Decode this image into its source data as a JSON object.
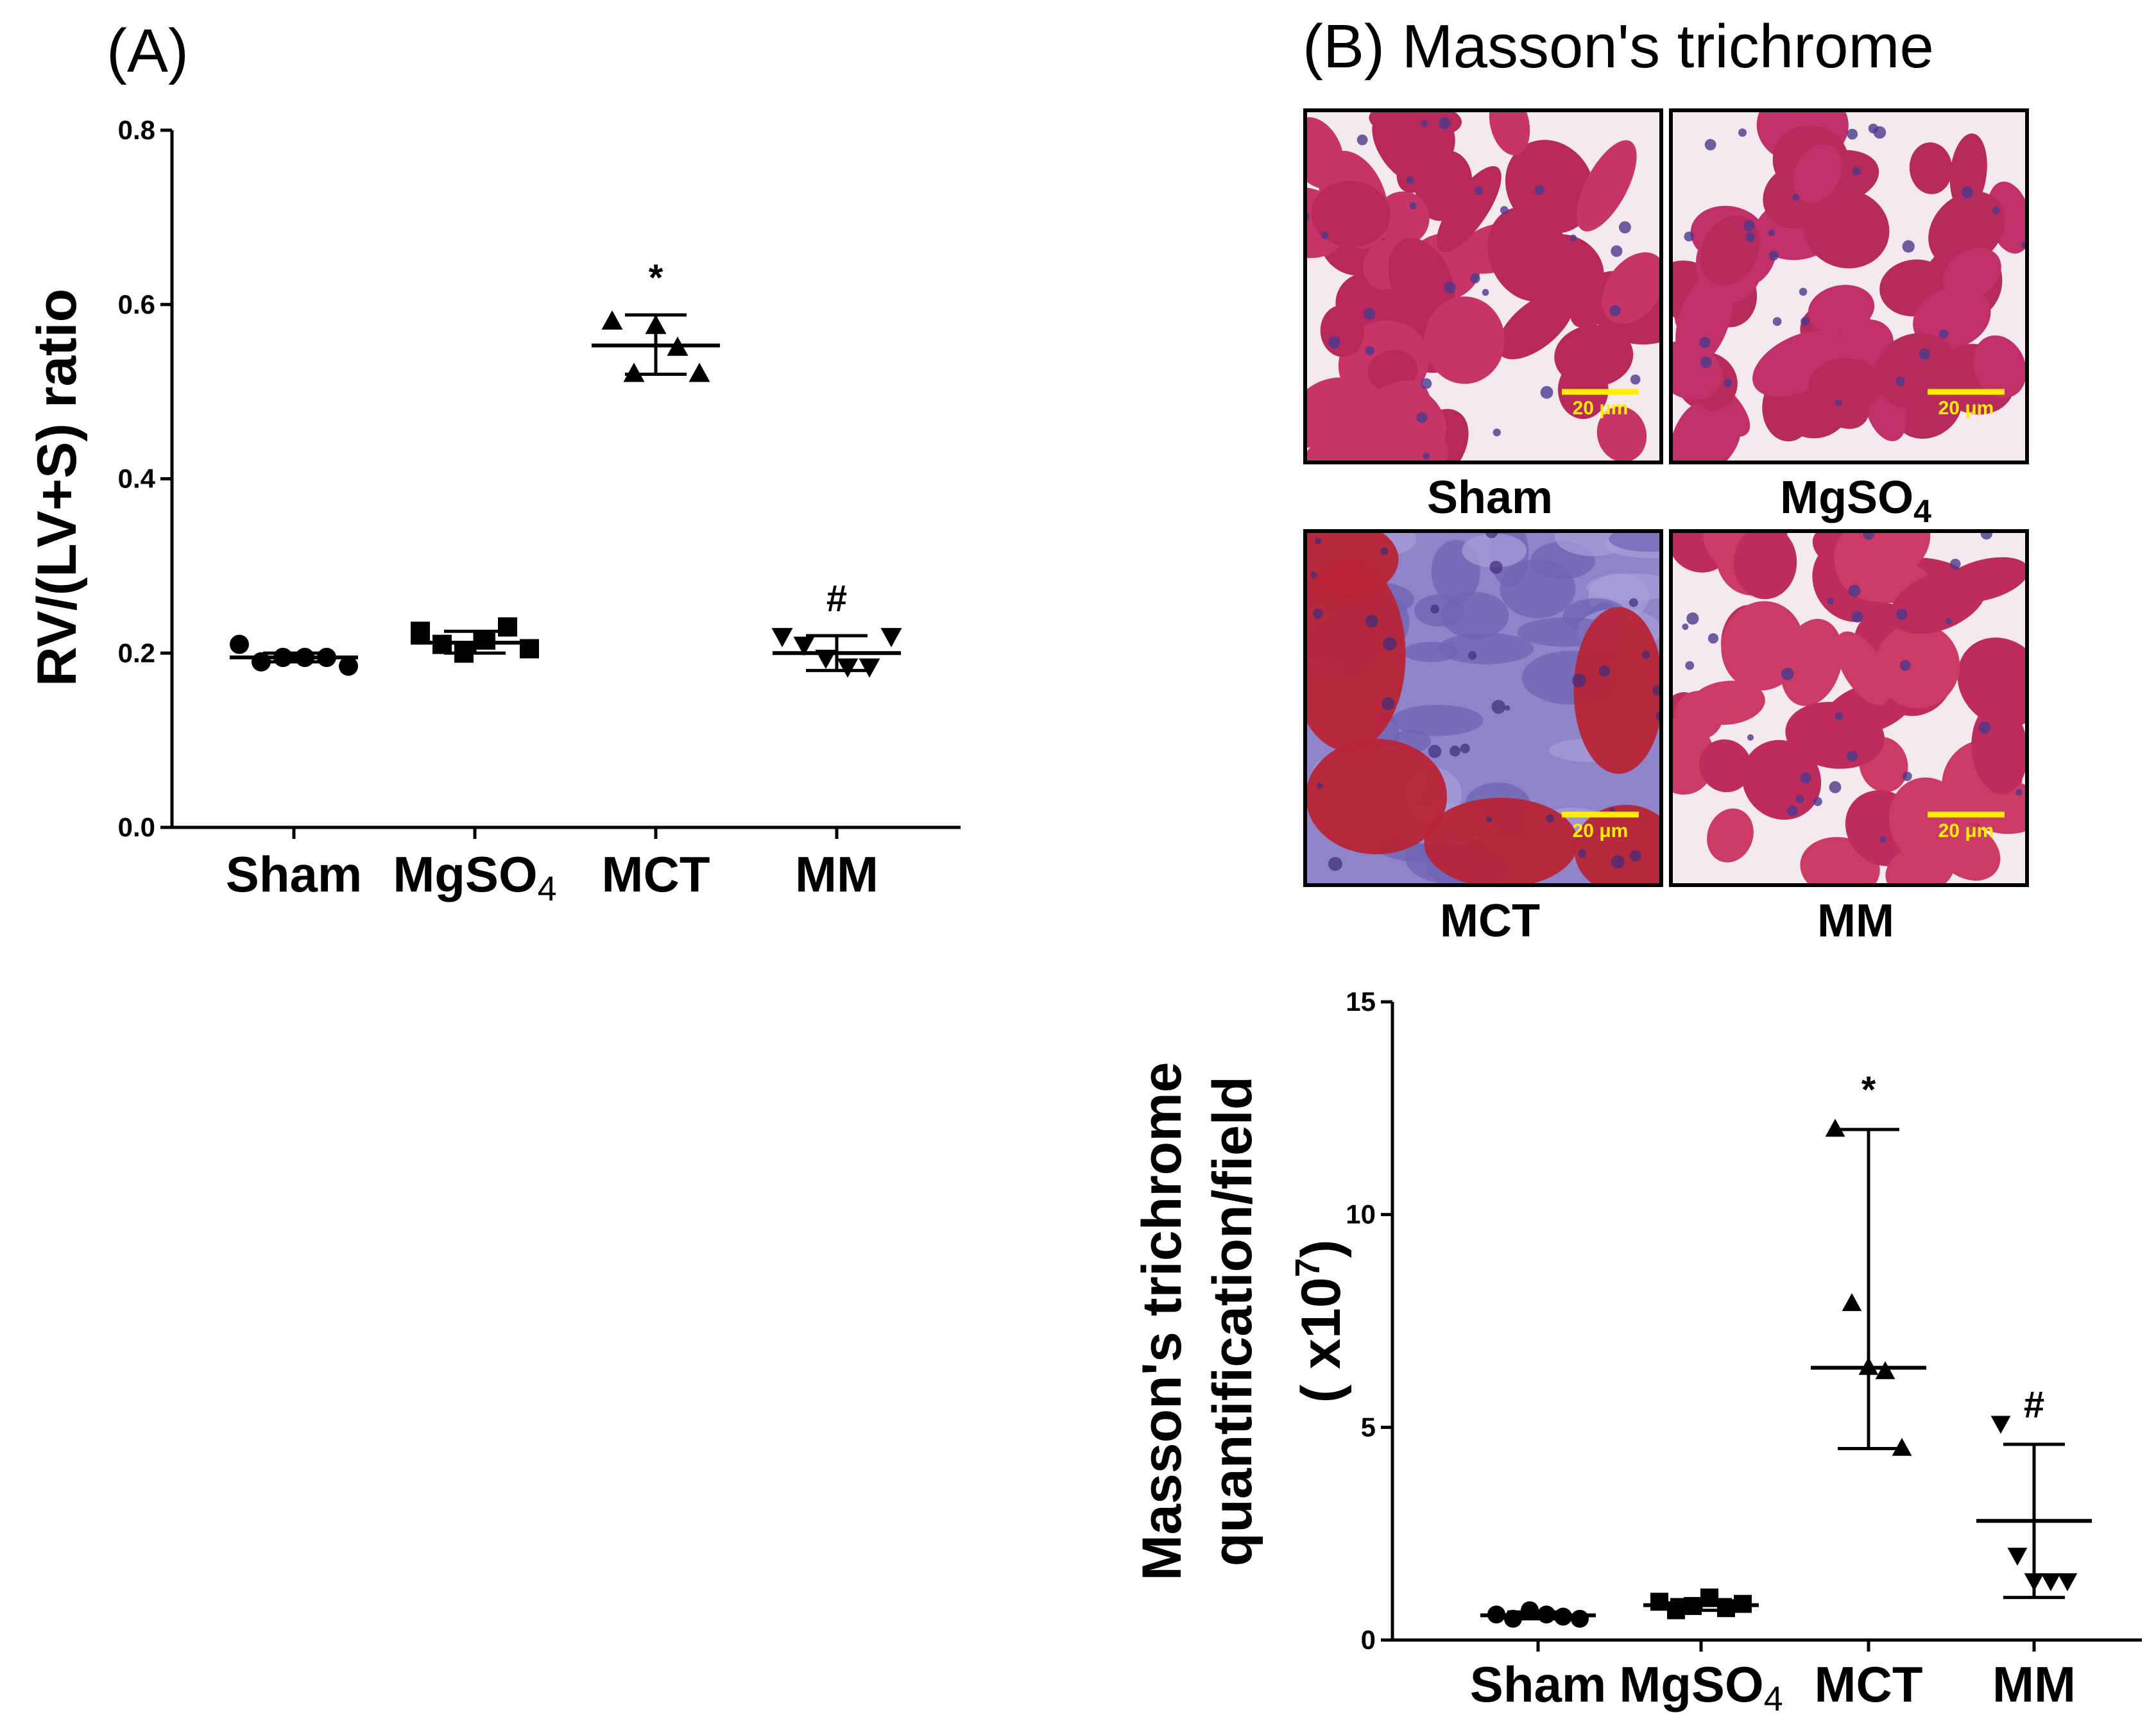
{
  "figure": {
    "panel_a_label": "(A)",
    "panel_b_label": "(B) Masson's trichrome"
  },
  "micrographs": {
    "stain": "Masson's trichrome",
    "scale_bar": "20 μm",
    "panels": [
      {
        "label": "Sham",
        "tissue": "normal",
        "muscle_color": "#b8285a",
        "fiber_color": "#c73468"
      },
      {
        "label": "MgSO",
        "subscript": "4",
        "tissue": "normal",
        "muscle_color": "#b62a5c",
        "fiber_color": "#c2306a"
      },
      {
        "label": "MCT",
        "tissue": "fibrotic",
        "muscle_color": "#b82436",
        "fiber_color": "#7a70c4"
      },
      {
        "label": "MM",
        "tissue": "normal",
        "muscle_color": "#bd2c5c",
        "fiber_color": "#cc3a66"
      }
    ]
  },
  "chart_data": [
    {
      "id": "chart-a",
      "type": "scatter",
      "ylabel": "RV/(LV+S) ratio",
      "ylim": [
        0,
        0.8
      ],
      "yticks": [
        0.0,
        0.2,
        0.4,
        0.6,
        0.8
      ],
      "ytick_labels": [
        "0.0",
        "0.2",
        "0.4",
        "0.6",
        "0.8"
      ],
      "categories": [
        {
          "label": "Sham",
          "sub": ""
        },
        {
          "label": "MgSO",
          "sub": "4"
        },
        {
          "label": "MCT",
          "sub": ""
        },
        {
          "label": "MM",
          "sub": ""
        }
      ],
      "series": [
        {
          "category": "Sham",
          "marker": "circle",
          "points": [
            0.21,
            0.19,
            0.195,
            0.195,
            0.195,
            0.185
          ],
          "mean": 0.195,
          "err_low": 0.19,
          "err_high": 0.2,
          "sig": ""
        },
        {
          "category": "MgSO4",
          "marker": "square",
          "points": [
            0.225,
            0.21,
            0.2,
            0.215,
            0.23,
            0.205
          ],
          "mean": 0.212,
          "err_low": 0.2,
          "err_high": 0.225,
          "sig": ""
        },
        {
          "category": "MCT",
          "marker": "triangle-up",
          "points": [
            0.58,
            0.52,
            0.575,
            0.55,
            0.52
          ],
          "mean": 0.553,
          "err_low": 0.52,
          "err_high": 0.588,
          "sig": "*"
        },
        {
          "category": "MM",
          "marker": "triangle-down",
          "points": [
            0.22,
            0.21,
            0.195,
            0.185,
            0.185,
            0.22
          ],
          "mean": 0.2,
          "err_low": 0.18,
          "err_high": 0.22,
          "sig": "#"
        }
      ]
    },
    {
      "id": "chart-b",
      "type": "scatter",
      "ylabel_lines": [
        "Masson's trichrome",
        "quantification/field"
      ],
      "ylabel_unit": "( x10",
      "ylabel_unit_sup": "7",
      "ylabel_unit_close": ")",
      "ylim": [
        0,
        15
      ],
      "yticks": [
        0,
        5,
        10,
        15
      ],
      "ytick_labels": [
        "0",
        "5",
        "10",
        "15"
      ],
      "categories": [
        {
          "label": "Sham",
          "sub": ""
        },
        {
          "label": "MgSO",
          "sub": "4"
        },
        {
          "label": "MCT",
          "sub": ""
        },
        {
          "label": "MM",
          "sub": ""
        }
      ],
      "series": [
        {
          "category": "Sham",
          "marker": "circle",
          "points": [
            0.6,
            0.5,
            0.7,
            0.6,
            0.55,
            0.5
          ],
          "mean": 0.58,
          "err_low": 0.5,
          "err_high": 0.66,
          "sig": ""
        },
        {
          "category": "MgSO4",
          "marker": "square",
          "points": [
            0.9,
            0.7,
            0.8,
            1.0,
            0.75,
            0.85
          ],
          "mean": 0.82,
          "err_low": 0.7,
          "err_high": 0.95,
          "sig": ""
        },
        {
          "category": "MCT",
          "marker": "triangle-up",
          "points": [
            12.0,
            7.9,
            6.4,
            6.3,
            4.5
          ],
          "mean": 6.4,
          "err_low": 4.5,
          "err_high": 12.0,
          "sig": "*"
        },
        {
          "category": "MM",
          "marker": "triangle-down",
          "points": [
            5.1,
            2.0,
            1.4,
            1.4,
            1.4
          ],
          "mean": 2.8,
          "err_low": 1.0,
          "err_high": 4.6,
          "sig": "#"
        }
      ]
    }
  ]
}
